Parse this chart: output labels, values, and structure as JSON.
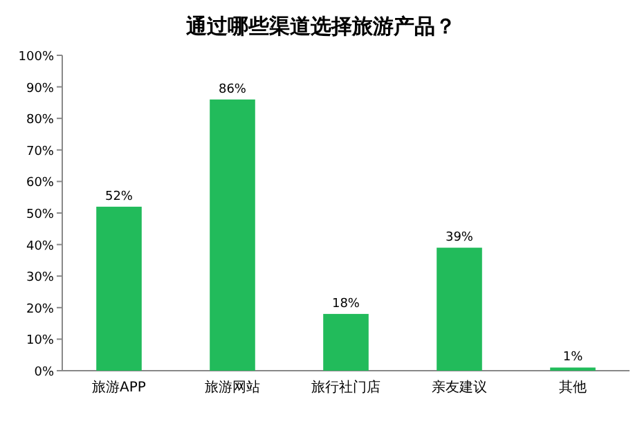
{
  "chart_data": {
    "type": "bar",
    "title": "通过哪些渠道选择旅游产品？",
    "categories": [
      "旅游APP",
      "旅游网站",
      "旅行社门店",
      "亲友建议",
      "其他"
    ],
    "values": [
      52,
      86,
      18,
      39,
      1
    ],
    "value_labels": [
      "52%",
      "86%",
      "18%",
      "39%",
      "1%"
    ],
    "color": "#22bb5b",
    "ylim": [
      0,
      100
    ],
    "yticks": [
      {
        "value": 0,
        "label": "0%"
      },
      {
        "value": 10,
        "label": "10%"
      },
      {
        "value": 20,
        "label": "20%"
      },
      {
        "value": 30,
        "label": "30%"
      },
      {
        "value": 40,
        "label": "40%"
      },
      {
        "value": 50,
        "label": "50%"
      },
      {
        "value": 60,
        "label": "60%"
      },
      {
        "value": 70,
        "label": "70%"
      },
      {
        "value": 80,
        "label": "80%"
      },
      {
        "value": 90,
        "label": "90%"
      },
      {
        "value": 100,
        "label": "100%"
      }
    ],
    "grid": false
  }
}
